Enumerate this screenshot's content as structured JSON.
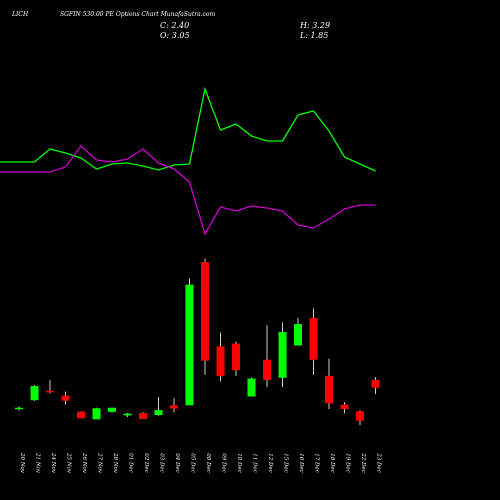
{
  "header": {
    "symbol": "LICH",
    "title": "SGFIN 530.00 PE Options Chart MunafaSutra.com",
    "close_label": "C: 2.40",
    "high_label": "H: 3.29",
    "open_label": "O: 3.05",
    "low_label": "L: 1.85"
  },
  "colors": {
    "background": "#000000",
    "up": "#00ff00",
    "down": "#ff0000",
    "wick": "#ffffff",
    "line_green": "#00ff00",
    "line_magenta": "#cc00cc"
  },
  "chart_data": [
    {
      "type": "line",
      "series": [
        {
          "color": "#00ff00",
          "values": [
            162,
            162,
            149,
            153,
            158,
            169,
            164,
            163,
            166,
            170,
            165,
            164,
            89,
            130,
            124,
            136,
            141,
            141,
            115,
            111,
            131,
            157,
            164,
            171
          ]
        },
        {
          "color": "#cc00cc",
          "values": [
            172,
            172,
            172,
            167,
            146,
            160,
            162,
            159,
            149,
            163,
            169,
            182,
            234,
            207,
            211,
            206,
            208,
            211,
            225,
            228,
            219,
            209,
            205,
            205
          ]
        }
      ],
      "ylim": [
        80,
        245
      ],
      "note_axis": "inverted vertical scale"
    },
    {
      "type": "candlestick",
      "categories": [
        "20 Nov",
        "21 Nov",
        "24 Nov",
        "25 Nov",
        "26 Nov",
        "27 Nov",
        "28 Nov",
        "01 Dec",
        "02 Dec",
        "03 Dec",
        "04 Dec",
        "05 Dec",
        "08 Dec",
        "09 Dec",
        "10 Dec",
        "11 Dec",
        "12 Dec",
        "15 Dec",
        "16 Dec",
        "17 Dec",
        "18 Dec",
        "19 Dec",
        "22 Dec",
        "23 Dec"
      ],
      "ohlc": [
        {
          "o": 0.62,
          "h": 0.82,
          "l": 0.48,
          "c": 0.72
        },
        {
          "o": 1.35,
          "h": 2.62,
          "l": 1.3,
          "c": 2.54
        },
        {
          "o": 2.14,
          "h": 3.05,
          "l": 1.92,
          "c": 2.04
        },
        {
          "o": 1.74,
          "h": 2.08,
          "l": 0.98,
          "c": 1.31
        },
        {
          "o": 0.39,
          "h": 0.42,
          "l": -0.19,
          "c": -0.16
        },
        {
          "o": -0.26,
          "h": 0.72,
          "l": -0.26,
          "c": 0.67
        },
        {
          "o": 0.37,
          "h": 0.74,
          "l": 0.29,
          "c": 0.72
        },
        {
          "o": 0.07,
          "h": 0.27,
          "l": -0.06,
          "c": 0.22
        },
        {
          "o": 0.27,
          "h": 0.35,
          "l": -0.23,
          "c": -0.23
        },
        {
          "o": 0.1,
          "h": 1.62,
          "l": 0.03,
          "c": 0.52
        },
        {
          "o": 0.92,
          "h": 1.52,
          "l": 0.33,
          "c": 0.65
        },
        {
          "o": 0.92,
          "h": 11.6,
          "l": 0.92,
          "c": 11.08
        },
        {
          "o": 12.98,
          "h": 13.26,
          "l": 3.48,
          "c": 4.68
        },
        {
          "o": 5.88,
          "h": 7.04,
          "l": 2.94,
          "c": 3.38
        },
        {
          "o": 6.12,
          "h": 6.29,
          "l": 3.38,
          "c": 3.88
        },
        {
          "o": 1.66,
          "h": 3.26,
          "l": 1.66,
          "c": 3.18
        },
        {
          "o": 4.76,
          "h": 7.67,
          "l": 2.46,
          "c": 3.06
        },
        {
          "o": 3.24,
          "h": 7.89,
          "l": 2.46,
          "c": 7.09
        },
        {
          "o": 5.96,
          "h": 8.28,
          "l": 5.96,
          "c": 7.76
        },
        {
          "o": 8.28,
          "h": 9.08,
          "l": 3.48,
          "c": 4.76
        },
        {
          "o": 3.4,
          "h": 4.85,
          "l": 0.6,
          "c": 1.09
        },
        {
          "o": 0.98,
          "h": 1.19,
          "l": 0.25,
          "c": 0.6
        },
        {
          "o": 0.42,
          "h": 0.51,
          "l": -0.75,
          "c": -0.38
        },
        {
          "o": 3.05,
          "h": 3.29,
          "l": 1.85,
          "c": 2.4
        }
      ],
      "ylim": [
        -2,
        14
      ],
      "grid": false,
      "legend": "none"
    }
  ]
}
